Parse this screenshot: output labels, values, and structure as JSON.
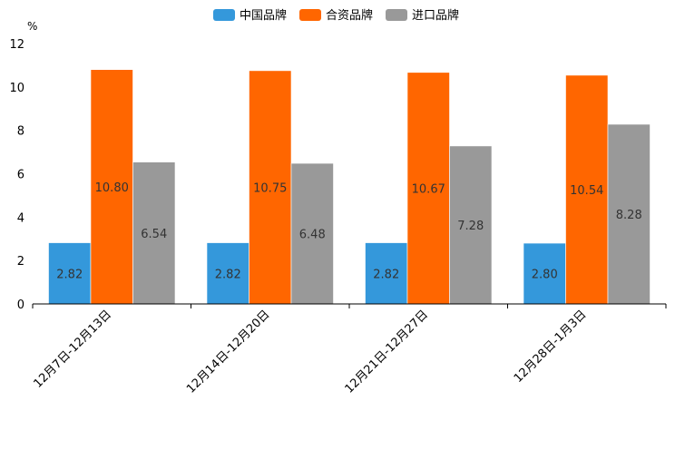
{
  "chart_data": {
    "type": "bar",
    "unit": "%",
    "categories": [
      "12月7日-12月13日",
      "12月14日-12月20日",
      "12月21日-12月27日",
      "12月28日-1月3日"
    ],
    "series": [
      {
        "name": "中国品牌",
        "color": "#3498db",
        "values": [
          2.82,
          2.82,
          2.82,
          2.8
        ],
        "labels": [
          "2.82",
          "2.82",
          "2.82",
          "2.80"
        ]
      },
      {
        "name": "合资品牌",
        "color": "#ff6600",
        "values": [
          10.8,
          10.75,
          10.67,
          10.54
        ],
        "labels": [
          "10.80",
          "10.75",
          "10.67",
          "10.54"
        ]
      },
      {
        "name": "进口品牌",
        "color": "#999999",
        "values": [
          6.54,
          6.48,
          7.28,
          8.28
        ],
        "labels": [
          "6.54",
          "6.48",
          "7.28",
          "8.28"
        ]
      }
    ],
    "ylim": [
      0,
      12
    ],
    "yticks": [
      "0",
      "2",
      "4",
      "6",
      "8",
      "10",
      "12"
    ],
    "legend_position": "top-center"
  }
}
